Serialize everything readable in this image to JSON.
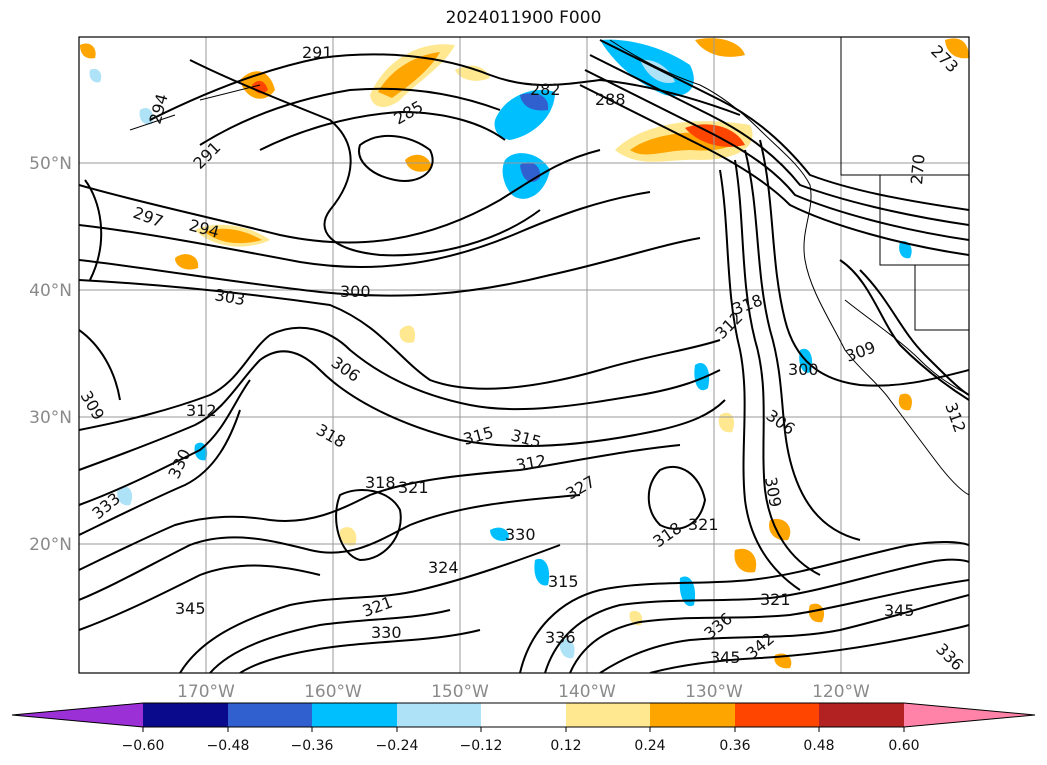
{
  "title": "2024011900 F000",
  "latitude_labels": [
    "50°N",
    "40°N",
    "30°N",
    "20°N"
  ],
  "longitude_labels": [
    "170°W",
    "160°W",
    "150°W",
    "140°W",
    "130°W",
    "120°W"
  ],
  "contour_labels": [
    "291",
    "294",
    "291",
    "297",
    "294",
    "285",
    "282",
    "288",
    "303",
    "300",
    "306",
    "309",
    "312",
    "318",
    "315",
    "315",
    "312",
    "318",
    "321",
    "327",
    "330",
    "324",
    "315",
    "318",
    "321",
    "330",
    "333",
    "345",
    "321",
    "330",
    "336",
    "345",
    "336",
    "342",
    "321",
    "345",
    "336",
    "309",
    "306",
    "300",
    "309",
    "318",
    "312",
    "312",
    "270",
    "273"
  ],
  "colorbar": {
    "ticks": [
      "−0.60",
      "−0.48",
      "−0.36",
      "−0.24",
      "−0.12",
      "0.12",
      "0.24",
      "0.36",
      "0.48",
      "0.60"
    ],
    "colors": [
      "#9b30d6",
      "#0a0a8c",
      "#3060d0",
      "#00bfff",
      "#ade2f7",
      "#ffffff",
      "#ffe890",
      "#ffa500",
      "#ff4500",
      "#b22222",
      "#ff82a8"
    ]
  }
}
